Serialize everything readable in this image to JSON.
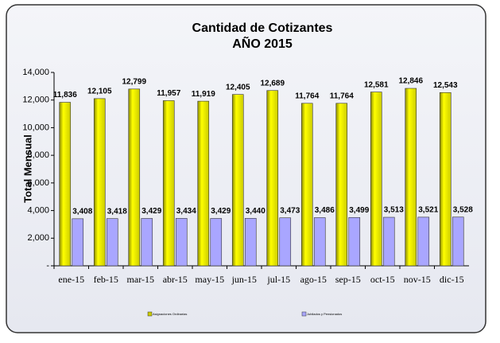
{
  "chart_data": {
    "type": "bar",
    "title": [
      "Cantidad de Cotizantes",
      "AÑO 2015"
    ],
    "y_label": "Total Mensual",
    "categories": [
      "ene-15",
      "feb-15",
      "mar-15",
      "abr-15",
      "may-15",
      "jun-15",
      "jul-15",
      "ago-15",
      "sep-15",
      "oct-15",
      "nov-15",
      "dic-15"
    ],
    "series": [
      {
        "name": "Asignaciones Ordinarias",
        "color": "#ffff00",
        "values": [
          11836,
          12105,
          12799,
          11957,
          11919,
          12405,
          12689,
          11764,
          11764,
          12581,
          12846,
          12543
        ],
        "value_labels": [
          "11,836",
          "12,105",
          "12,799",
          "11,957",
          "11,919",
          "12,405",
          "12,689",
          "11,764",
          "11,764",
          "12,581",
          "12,846",
          "12,543"
        ]
      },
      {
        "name": "Jubilados y Pensionados",
        "color": "#a9a6ff",
        "values": [
          3408,
          3418,
          3429,
          3434,
          3429,
          3440,
          3473,
          3486,
          3499,
          3513,
          3521,
          3528
        ],
        "value_labels": [
          "3,408",
          "3,418",
          "3,429",
          "3,434",
          "3,429",
          "3,440",
          "3,473",
          "3,486",
          "3,499",
          "3,513",
          "3,521",
          "3,528"
        ]
      }
    ],
    "ylim": [
      0,
      14000
    ],
    "yticks": [
      {
        "value": 0,
        "label": "-"
      },
      {
        "value": 2000,
        "label": "2,000"
      },
      {
        "value": 4000,
        "label": "4,000"
      },
      {
        "value": 6000,
        "label": "6,000"
      },
      {
        "value": 8000,
        "label": "8,000"
      },
      {
        "value": 10000,
        "label": "10,000"
      },
      {
        "value": 12000,
        "label": "12,000"
      },
      {
        "value": 14000,
        "label": "14,000"
      }
    ],
    "legend": "bottom"
  }
}
